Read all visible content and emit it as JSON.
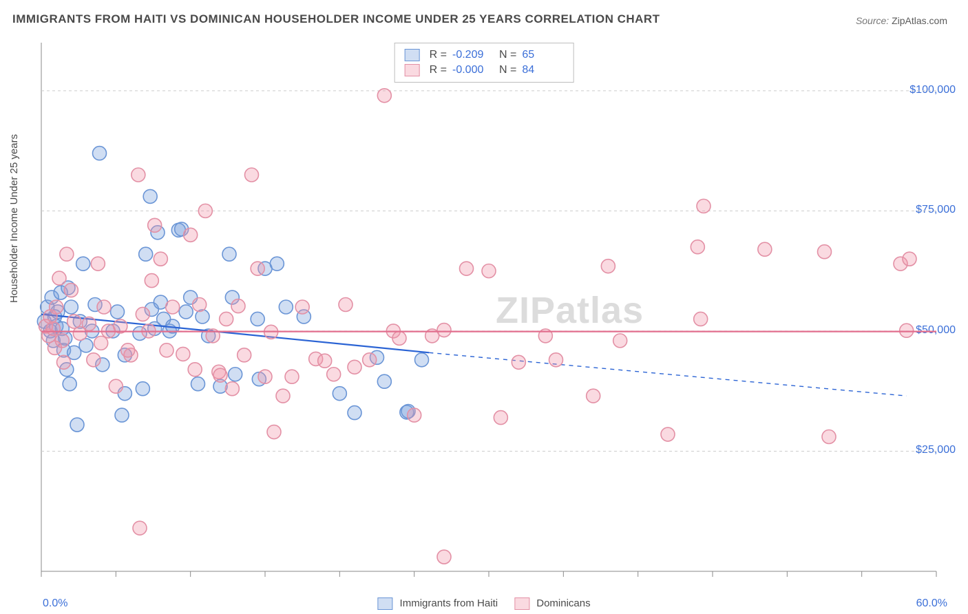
{
  "title": "IMMIGRANTS FROM HAITI VS DOMINICAN HOUSEHOLDER INCOME UNDER 25 YEARS CORRELATION CHART",
  "source_label": "Source:",
  "source_value": "ZipAtlas.com",
  "ylabel": "Householder Income Under 25 years",
  "watermark": {
    "bold": "ZIP",
    "light": "atlas"
  },
  "chart": {
    "type": "scatter",
    "background_color": "#ffffff",
    "grid_color": "#cccccc",
    "axis_color": "#8a8a8a",
    "label_color": "#3b6fd8",
    "xlim": [
      0,
      60
    ],
    "ylim": [
      0,
      110000
    ],
    "ytick_values": [
      25000,
      50000,
      75000,
      100000
    ],
    "ytick_labels": [
      "$25,000",
      "$50,000",
      "$75,000",
      "$100,000"
    ],
    "xtick_labels": [
      "0.0%",
      "60.0%"
    ],
    "marker_radius": 10,
    "marker_stroke_width": 1.6,
    "series": [
      {
        "name": "Immigrants from Haiti",
        "fill": "rgba(120,160,220,0.35)",
        "stroke": "#6a95d6",
        "trend_color": "#2a63d4",
        "trend_width": 2.2,
        "trend": {
          "x0": 0,
          "y0": 53500,
          "x1": 26,
          "y1": 45500,
          "dash_x1": 58,
          "dash_y1": 36500
        },
        "r_label": "R =",
        "r_value": "-0.209",
        "n_label": "N =",
        "n_value": "65",
        "points": [
          [
            0.2,
            52000
          ],
          [
            0.4,
            55000
          ],
          [
            0.6,
            50000
          ],
          [
            0.7,
            57000
          ],
          [
            0.8,
            48000
          ],
          [
            0.9,
            53000
          ],
          [
            1.0,
            51000
          ],
          [
            1.1,
            54000
          ],
          [
            1.3,
            58000
          ],
          [
            1.4,
            50500
          ],
          [
            1.5,
            46000
          ],
          [
            1.6,
            48500
          ],
          [
            1.7,
            42000
          ],
          [
            1.8,
            59000
          ],
          [
            1.9,
            39000
          ],
          [
            2.0,
            55000
          ],
          [
            2.2,
            45500
          ],
          [
            2.4,
            30500
          ],
          [
            2.6,
            52000
          ],
          [
            2.8,
            64000
          ],
          [
            3.0,
            47000
          ],
          [
            3.4,
            50000
          ],
          [
            3.6,
            55500
          ],
          [
            3.9,
            87000
          ],
          [
            4.1,
            43000
          ],
          [
            4.8,
            50000
          ],
          [
            5.1,
            54000
          ],
          [
            5.4,
            32500
          ],
          [
            5.6,
            37000
          ],
          [
            5.6,
            45000
          ],
          [
            6.6,
            49500
          ],
          [
            6.8,
            38000
          ],
          [
            7.0,
            66000
          ],
          [
            7.3,
            78000
          ],
          [
            7.4,
            54500
          ],
          [
            7.6,
            50500
          ],
          [
            7.8,
            70500
          ],
          [
            8.0,
            56000
          ],
          [
            8.2,
            52500
          ],
          [
            8.6,
            50000
          ],
          [
            8.8,
            51000
          ],
          [
            9.2,
            71000
          ],
          [
            9.4,
            71200
          ],
          [
            9.7,
            54000
          ],
          [
            10.0,
            57000
          ],
          [
            10.5,
            39000
          ],
          [
            10.8,
            53000
          ],
          [
            11.2,
            49000
          ],
          [
            12.0,
            38500
          ],
          [
            12.6,
            66000
          ],
          [
            12.8,
            57000
          ],
          [
            13.0,
            41000
          ],
          [
            14.5,
            52500
          ],
          [
            14.6,
            40000
          ],
          [
            15.0,
            63000
          ],
          [
            15.8,
            64000
          ],
          [
            16.4,
            55000
          ],
          [
            17.6,
            53000
          ],
          [
            20.0,
            37000
          ],
          [
            21.0,
            33000
          ],
          [
            22.5,
            44500
          ],
          [
            23.0,
            39500
          ],
          [
            24.5,
            33100
          ],
          [
            24.6,
            33300
          ],
          [
            25.5,
            44000
          ]
        ]
      },
      {
        "name": "Dominicans",
        "fill": "rgba(240,150,170,0.35)",
        "stroke": "#e390a5",
        "trend_color": "#e26f8e",
        "trend_width": 2.2,
        "trend": {
          "x0": 0,
          "y0": 49900,
          "x1": 60,
          "y1": 49900
        },
        "r_label": "R =",
        "r_value": "-0.000",
        "n_label": "N =",
        "n_value": "84",
        "points": [
          [
            0.3,
            51000
          ],
          [
            0.5,
            49000
          ],
          [
            0.6,
            53000
          ],
          [
            0.8,
            50500
          ],
          [
            0.9,
            46500
          ],
          [
            1.0,
            55000
          ],
          [
            1.2,
            61000
          ],
          [
            1.4,
            48000
          ],
          [
            1.5,
            43500
          ],
          [
            1.7,
            66000
          ],
          [
            2.0,
            58500
          ],
          [
            2.2,
            52000
          ],
          [
            2.6,
            49500
          ],
          [
            3.2,
            51500
          ],
          [
            3.5,
            44000
          ],
          [
            3.8,
            64000
          ],
          [
            4.0,
            47500
          ],
          [
            4.2,
            55000
          ],
          [
            4.5,
            50000
          ],
          [
            5.0,
            38500
          ],
          [
            5.3,
            51000
          ],
          [
            6.0,
            45000
          ],
          [
            6.5,
            82500
          ],
          [
            6.8,
            53500
          ],
          [
            6.6,
            9000
          ],
          [
            7.2,
            50000
          ],
          [
            7.4,
            60500
          ],
          [
            7.6,
            72000
          ],
          [
            8.0,
            65000
          ],
          [
            8.4,
            46000
          ],
          [
            8.8,
            55000
          ],
          [
            9.5,
            45200
          ],
          [
            10.0,
            70000
          ],
          [
            10.3,
            42000
          ],
          [
            10.6,
            55500
          ],
          [
            11.0,
            75000
          ],
          [
            11.5,
            49000
          ],
          [
            11.9,
            41500
          ],
          [
            12.0,
            40800
          ],
          [
            12.4,
            52500
          ],
          [
            12.8,
            38000
          ],
          [
            13.2,
            55200
          ],
          [
            13.6,
            45000
          ],
          [
            14.1,
            82500
          ],
          [
            14.5,
            63000
          ],
          [
            15.0,
            40500
          ],
          [
            15.4,
            49800
          ],
          [
            15.6,
            29000
          ],
          [
            16.2,
            36500
          ],
          [
            16.8,
            40500
          ],
          [
            17.5,
            55000
          ],
          [
            18.4,
            44200
          ],
          [
            19.0,
            43800
          ],
          [
            19.6,
            41000
          ],
          [
            20.4,
            55500
          ],
          [
            21.0,
            42500
          ],
          [
            22.0,
            44000
          ],
          [
            23.0,
            99000
          ],
          [
            23.6,
            50000
          ],
          [
            24.0,
            48500
          ],
          [
            25.0,
            32500
          ],
          [
            26.2,
            49000
          ],
          [
            27.0,
            50200
          ],
          [
            27.0,
            3000
          ],
          [
            28.5,
            63000
          ],
          [
            30.0,
            62500
          ],
          [
            30.8,
            32000
          ],
          [
            32.0,
            43500
          ],
          [
            33.8,
            49000
          ],
          [
            34.5,
            44000
          ],
          [
            37.0,
            36500
          ],
          [
            38.0,
            63500
          ],
          [
            38.8,
            48000
          ],
          [
            42.0,
            28500
          ],
          [
            44.0,
            67500
          ],
          [
            44.2,
            52500
          ],
          [
            44.4,
            76000
          ],
          [
            48.5,
            67000
          ],
          [
            52.5,
            66500
          ],
          [
            52.8,
            28000
          ],
          [
            57.6,
            64000
          ],
          [
            58.2,
            65000
          ],
          [
            58.0,
            50100
          ],
          [
            5.8,
            46000
          ]
        ]
      }
    ]
  }
}
